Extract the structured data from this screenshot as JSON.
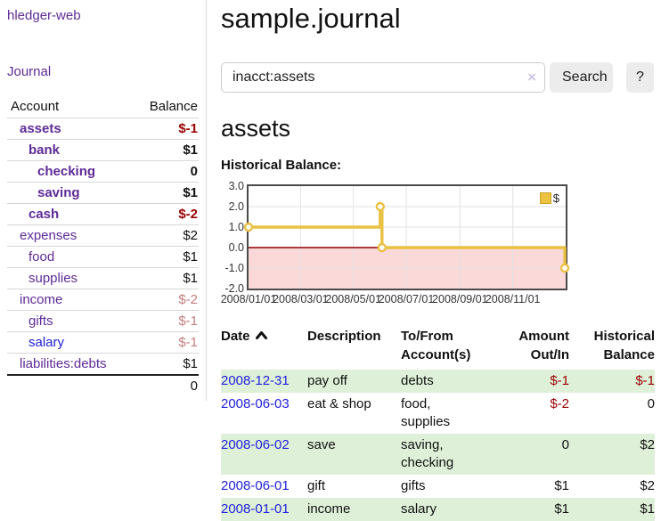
{
  "sidebar": {
    "app_title": "hledger-web",
    "nav": {
      "journal_label": "Journal"
    },
    "accounts_table": {
      "headers": {
        "account": "Account",
        "balance": "Balance"
      },
      "rows": [
        {
          "name": "assets",
          "indent": 1,
          "bold": true,
          "balance": "$-1",
          "balance_style": "negative",
          "link_color": "purple"
        },
        {
          "name": "bank",
          "indent": 2,
          "bold": true,
          "balance": "$1",
          "balance_style": "normal",
          "link_color": "purple"
        },
        {
          "name": "checking",
          "indent": 3,
          "bold": true,
          "balance": "0",
          "balance_style": "normal",
          "link_color": "purple"
        },
        {
          "name": "saving",
          "indent": 3,
          "bold": true,
          "balance": "$1",
          "balance_style": "normal",
          "link_color": "purple"
        },
        {
          "name": "cash",
          "indent": 2,
          "bold": true,
          "balance": "$-2",
          "balance_style": "negative",
          "link_color": "purple"
        },
        {
          "name": "expenses",
          "indent": 1,
          "bold": false,
          "balance": "$2",
          "balance_style": "normal",
          "link_color": "purple"
        },
        {
          "name": "food",
          "indent": 2,
          "bold": false,
          "balance": "$1",
          "balance_style": "normal",
          "link_color": "purple"
        },
        {
          "name": "supplies",
          "indent": 2,
          "bold": false,
          "balance": "$1",
          "balance_style": "normal",
          "link_color": "purple"
        },
        {
          "name": "income",
          "indent": 1,
          "bold": false,
          "balance": "$-2",
          "balance_style": "negative-muted",
          "link_color": "purple"
        },
        {
          "name": "gifts",
          "indent": 2,
          "bold": false,
          "balance": "$-1",
          "balance_style": "negative-muted",
          "link_color": "purple"
        },
        {
          "name": "salary",
          "indent": 2,
          "bold": false,
          "balance": "$-1",
          "balance_style": "negative-muted",
          "link_color": "blue"
        },
        {
          "name": "liabilities:debts",
          "indent": 1,
          "bold": false,
          "balance": "$1",
          "balance_style": "normal",
          "link_color": "purple"
        }
      ],
      "total": "0"
    }
  },
  "header": {
    "title": "sample.journal"
  },
  "search": {
    "value": "inacct:assets",
    "clear_icon": "×",
    "button_label": "Search",
    "help_label": "?"
  },
  "account_view": {
    "heading": "assets",
    "chart_label": "Historical Balance:"
  },
  "chart_data": {
    "type": "line",
    "title": "Historical Balance",
    "legend": [
      {
        "label": "$",
        "color": "#edc240",
        "border": "#c9a42a"
      }
    ],
    "legend_position": "top-right",
    "grid": true,
    "x_ticks": [
      "2008/01/01",
      "2008/03/01",
      "2008/05/01",
      "2008/07/01",
      "2008/09/01",
      "2008/11/01"
    ],
    "y_ticks": [
      "3.0",
      "2.0",
      "1.0",
      "0.0",
      "-1.0",
      "-2.0"
    ],
    "ylim": [
      -2,
      3
    ],
    "xlim": [
      "2008-01-01",
      "2009-01-01"
    ],
    "series": [
      {
        "name": "$",
        "points": [
          [
            "2008-01-01",
            1
          ],
          [
            "2008-06-01",
            1
          ],
          [
            "2008-06-01",
            2
          ],
          [
            "2008-06-03",
            2
          ],
          [
            "2008-06-03",
            0
          ],
          [
            "2008-12-31",
            0
          ],
          [
            "2008-12-31",
            -1
          ]
        ],
        "markers": [
          [
            "2008-01-01",
            1
          ],
          [
            "2008-06-01",
            2
          ],
          [
            "2008-06-03",
            0
          ],
          [
            "2008-12-31",
            -1
          ]
        ]
      }
    ],
    "line_color": "#e9c143",
    "marker_fill": "#ffffff",
    "negative_region_color": "#fbd9d9",
    "zero_line_color": "#8b0000",
    "gridline_color": "#e2e2e2",
    "border_color": "#4a4a4a"
  },
  "register_table": {
    "headers": {
      "date": "Date",
      "sort_icon": "chevron-up",
      "description": "Description",
      "account": "To/From Account(s)",
      "amount": "Amount Out/In",
      "balance": "Historical Balance"
    },
    "rows": [
      {
        "date": "2008-12-31",
        "description": "pay off",
        "accounts": "debts",
        "amount": "$-1",
        "amount_style": "negative",
        "balance": "$-1",
        "balance_style": "negative"
      },
      {
        "date": "2008-06-03",
        "description": "eat & shop",
        "accounts": "food, supplies",
        "amount": "$-2",
        "amount_style": "negative",
        "balance": "0",
        "balance_style": "normal"
      },
      {
        "date": "2008-06-02",
        "description": "save",
        "accounts": "saving, checking",
        "amount": "0",
        "amount_style": "normal",
        "balance": "$2",
        "balance_style": "normal"
      },
      {
        "date": "2008-06-01",
        "description": "gift",
        "accounts": "gifts",
        "amount": "$1",
        "amount_style": "normal",
        "balance": "$2",
        "balance_style": "normal"
      },
      {
        "date": "2008-01-01",
        "description": "income",
        "accounts": "salary",
        "amount": "$1",
        "amount_style": "normal",
        "balance": "$1",
        "balance_style": "normal"
      }
    ]
  },
  "colors": {
    "link_purple": "#5e2b97",
    "link_blue": "#2222dd",
    "negative": "#990000",
    "negative_muted": "#c47e7e",
    "row_stripe_green": "#dff0d8",
    "chart_gold": "#edc240"
  }
}
